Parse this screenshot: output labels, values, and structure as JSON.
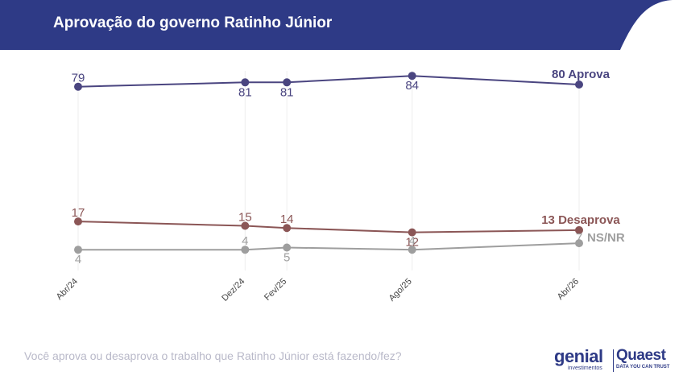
{
  "header": {
    "title": "Aprovação do governo Ratinho Júnior",
    "color": "#2e3a86"
  },
  "footer": {
    "question": "Você aprova ou desaprova o trabalho que Ratinho Júnior está fazendo/fez?"
  },
  "logos": {
    "genial": "genial",
    "genial_sub": "investimentos",
    "quaest": "Quaest",
    "quaest_sub": "DATA YOU CAN TRUST"
  },
  "chart_data": {
    "type": "line",
    "title": "Aprovação do governo Ratinho Júnior",
    "xlabel": "",
    "ylabel": "",
    "categories": [
      "Abr/24",
      "Dez/24",
      "Fev/25",
      "Ago/25",
      "Abr/26"
    ],
    "grid": "vertical",
    "series": [
      {
        "name": "Aprova",
        "end_label": "80 Aprova",
        "color": "#4a4580",
        "values": [
          79,
          81,
          81,
          84,
          80
        ],
        "label_pos": [
          "above",
          "below",
          "below",
          "below",
          "none"
        ]
      },
      {
        "name": "Desaprova",
        "end_label": "13 Desaprova",
        "color": "#8b5656",
        "values": [
          17,
          15,
          14,
          12,
          13
        ],
        "label_pos": [
          "above",
          "above",
          "above",
          "below",
          "none"
        ]
      },
      {
        "name": "NS/NR",
        "end_label": "NS/NR",
        "color": "#9e9e9e",
        "values": [
          4,
          4,
          5,
          4,
          7
        ],
        "label_pos": [
          "below",
          "above",
          "below",
          "above",
          "left"
        ]
      }
    ]
  }
}
